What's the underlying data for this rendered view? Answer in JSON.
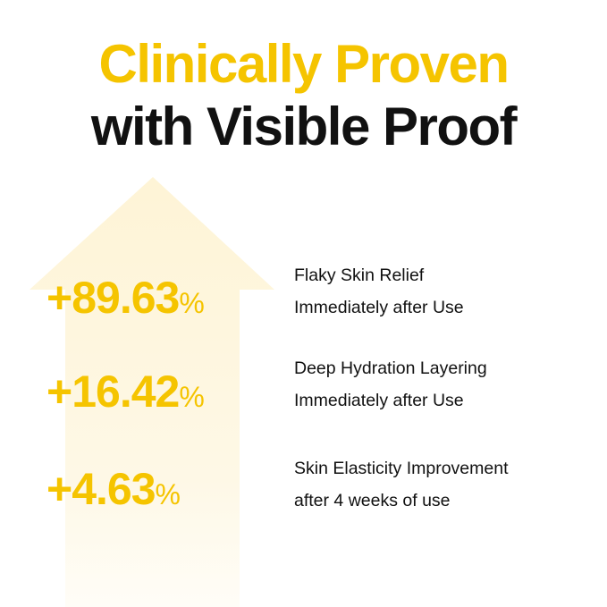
{
  "header": {
    "title_line1": "Clinically Proven",
    "title_line2": "with Visible Proof"
  },
  "colors": {
    "accent": "#F5C400",
    "arrow": "#FEF5D8",
    "text": "#111111"
  },
  "stats": [
    {
      "value": "+89.63",
      "unit": "%",
      "label": "Flaky Skin Relief",
      "sublabel": "Immediately after Use"
    },
    {
      "value": "+16.42",
      "unit": "%",
      "label": "Deep Hydration Layering",
      "sublabel": "Immediately after Use"
    },
    {
      "value": "+4.63",
      "unit": "%",
      "label": "Skin Elasticity Improvement",
      "sublabel": "after 4 weeks of use"
    }
  ]
}
